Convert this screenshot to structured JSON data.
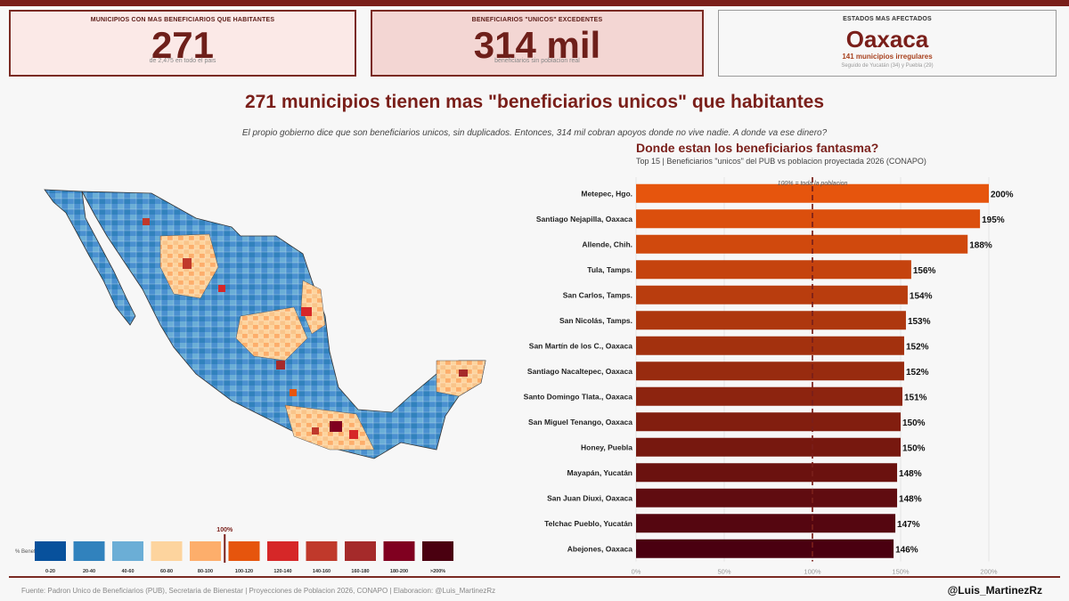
{
  "cards": [
    {
      "title": "MUNICIPIOS CON MAS BENEFICIARIOS QUE HABITANTES",
      "big": "271",
      "sub": "de 2,475 en todo el pais"
    },
    {
      "title": "BENEFICIARIOS \"UNICOS\" EXCEDENTES",
      "big": "314 mil",
      "sub": "beneficiarios sin poblacion real"
    },
    {
      "title": "ESTADOS MAS AFECTADOS",
      "big": "Oaxaca",
      "sub2": "141 municipios irregulares",
      "sub": "Seguido de Yucatán (34) y Puebla (29)"
    }
  ],
  "title": "271 municipios tienen mas \"beneficiarios unicos\" que habitantes",
  "subtitle": "El propio gobierno dice que son beneficiarios unicos, sin duplicados. Entonces, 314 mil cobran apoyos donde no vive nadie. A donde va ese dinero?",
  "map_legend": {
    "title": "% Benef",
    "marker_label": "100%",
    "bins": [
      {
        "label": "0-20",
        "color": "#08519c"
      },
      {
        "label": "20-40",
        "color": "#3182bd"
      },
      {
        "label": "40-60",
        "color": "#6baed6"
      },
      {
        "label": "60-80",
        "color": "#fdd49e"
      },
      {
        "label": "80-100",
        "color": "#fdae6b"
      },
      {
        "label": "100-120",
        "color": "#e6550d"
      },
      {
        "label": "120-140",
        "color": "#d62728"
      },
      {
        "label": "140-160",
        "color": "#c0392b"
      },
      {
        "label": "160-180",
        "color": "#a52a2a"
      },
      {
        "label": "180-200",
        "color": "#800020"
      },
      {
        "label": ">200%",
        "color": "#4a0010"
      }
    ]
  },
  "chart_data": {
    "type": "bar",
    "orientation": "horizontal",
    "title": "Donde estan los beneficiarios fantasma?",
    "subtitle": "Top 15 | Beneficiarios \"unicos\" del PUB vs poblacion proyectada 2026 (CONAPO)",
    "categories": [
      "Metepec, Hgo.",
      "Santiago Nejapilla, Oaxaca",
      "Allende, Chih.",
      "Tula, Tamps.",
      "San Carlos, Tamps.",
      "San Nicolás, Tamps.",
      "San Martín de los C., Oaxaca",
      "Santiago Nacaltepec, Oaxaca",
      "Santo Domingo Tlata., Oaxaca",
      "San Miguel Tenango, Oaxaca",
      "Honey, Puebla",
      "Mayapán, Yucatán",
      "San Juan Diuxi, Oaxaca",
      "Telchac Pueblo, Yucatán",
      "Abejones, Oaxaca"
    ],
    "values": [
      200,
      195,
      188,
      156,
      154,
      153,
      152,
      152,
      151,
      150,
      150,
      148,
      148,
      147,
      146
    ],
    "value_labels": [
      "200%",
      "195%",
      "188%",
      "156%",
      "154%",
      "153%",
      "152%",
      "152%",
      "151%",
      "150%",
      "150%",
      "148%",
      "148%",
      "147%",
      "146%"
    ],
    "xlim": [
      0,
      200
    ],
    "xticks": [
      0,
      50,
      100,
      150,
      200
    ],
    "xtick_labels": [
      "0%",
      "50%",
      "100%",
      "150%",
      "200%"
    ],
    "reference_line": {
      "value": 100,
      "label": "100% = toda la poblacion"
    },
    "color_start": "#e6550d",
    "color_end": "#4a0010",
    "grid": true
  },
  "footer": "Fuente: Padron Unico de Beneficiarios (PUB), Secretaria de Bienestar  |  Proyecciones de Poblacion 2026, CONAPO  |  Elaboracion: @Luis_MartinezRz",
  "handle": "@Luis_MartinezRz"
}
